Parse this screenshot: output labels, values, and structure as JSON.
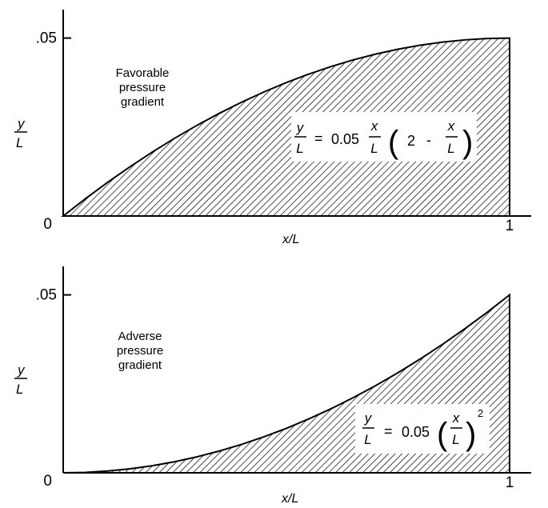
{
  "chart_data": [
    {
      "type": "area",
      "title": "",
      "xlabel": "x/L",
      "ylabel": {
        "numerator": "y",
        "denominator": "L"
      },
      "xlim": [
        0,
        1
      ],
      "ylim": [
        0,
        0.058
      ],
      "x_ticks": [
        {
          "value": 0,
          "label": "0"
        },
        {
          "value": 1,
          "label": "1"
        }
      ],
      "y_ticks": [
        {
          "value": 0.05,
          "label": ".05"
        }
      ],
      "annotation": [
        "Favorable",
        "pressure",
        "gradient"
      ],
      "equation": {
        "lhs_num": "y",
        "lhs_den": "L",
        "eq": "=",
        "coef": "0.05",
        "frac_num": "x",
        "frac_den": "L",
        "inner_a": "2",
        "minus": "-",
        "inner_num": "x",
        "inner_den": "L"
      },
      "x": [
        0,
        0.05,
        0.1,
        0.15,
        0.2,
        0.25,
        0.3,
        0.35,
        0.4,
        0.45,
        0.5,
        0.55,
        0.6,
        0.65,
        0.7,
        0.75,
        0.8,
        0.85,
        0.9,
        0.95,
        1
      ],
      "y": [
        0,
        0.004875,
        0.0095,
        0.013875,
        0.018,
        0.021875,
        0.0255,
        0.028875,
        0.032,
        0.034875,
        0.0375,
        0.039875,
        0.042,
        0.043875,
        0.0455,
        0.046875,
        0.048,
        0.048875,
        0.0495,
        0.049875,
        0.05
      ]
    },
    {
      "type": "area",
      "title": "",
      "xlabel": "x/L",
      "ylabel": {
        "numerator": "y",
        "denominator": "L"
      },
      "xlim": [
        0,
        1
      ],
      "ylim": [
        0,
        0.058
      ],
      "x_ticks": [
        {
          "value": 0,
          "label": "0"
        },
        {
          "value": 1,
          "label": "1"
        }
      ],
      "y_ticks": [
        {
          "value": 0.05,
          "label": ".05"
        }
      ],
      "annotation": [
        "Adverse",
        "pressure",
        "gradient"
      ],
      "equation": {
        "lhs_num": "y",
        "lhs_den": "L",
        "eq": "=",
        "coef": "0.05",
        "frac_num": "x",
        "frac_den": "L",
        "exponent": "2"
      },
      "x": [
        0,
        0.05,
        0.1,
        0.15,
        0.2,
        0.25,
        0.3,
        0.35,
        0.4,
        0.45,
        0.5,
        0.55,
        0.6,
        0.65,
        0.7,
        0.75,
        0.8,
        0.85,
        0.9,
        0.95,
        1
      ],
      "y": [
        0,
        0.000125,
        0.0005,
        0.001125,
        0.002,
        0.003125,
        0.0045,
        0.006125,
        0.008,
        0.010125,
        0.0125,
        0.015125,
        0.018,
        0.021125,
        0.0245,
        0.028125,
        0.032,
        0.036125,
        0.0405,
        0.045125,
        0.05
      ]
    }
  ]
}
